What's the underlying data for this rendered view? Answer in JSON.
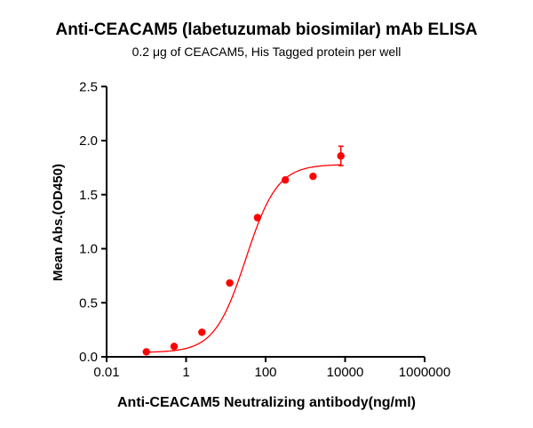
{
  "chart_data": {
    "type": "scatter",
    "title": "Anti-CEACAM5 (labetuzumab biosimilar) mAb ELISA",
    "subtitle": "0.2 μg of CEACAM5, His Tagged protein per well",
    "xlabel": "Anti-CEACAM5 Neutralizing antibody(ng/ml)",
    "ylabel": "Mean Abs.(OD450)",
    "xscale": "log",
    "xlim": [
      0.01,
      1000000
    ],
    "ylim": [
      0,
      2.5
    ],
    "xticks": [
      "0.01",
      "1",
      "100",
      "10000",
      "1000000"
    ],
    "yticks": [
      "0.0",
      "0.5",
      "1.0",
      "1.5",
      "2.0",
      "2.5"
    ],
    "grid": false,
    "color": "#ff0000",
    "x": [
      0.1,
      0.5,
      2.5,
      12.5,
      62.5,
      312.5,
      1562.5,
      7812.5
    ],
    "y": [
      0.046,
      0.096,
      0.227,
      0.683,
      1.287,
      1.636,
      1.669,
      1.858
    ],
    "error": [
      0,
      0,
      0,
      0,
      0,
      0,
      0,
      0.09
    ],
    "fit": {
      "model": "4PL",
      "bottom": 0.04,
      "top": 1.78,
      "ec50": 32,
      "hill": 1.1
    }
  }
}
